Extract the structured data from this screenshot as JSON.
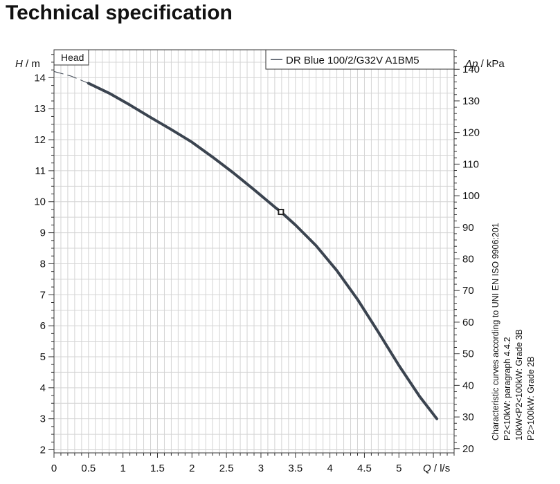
{
  "page": {
    "title": "Technical specification"
  },
  "chart_data": {
    "type": "line",
    "title": "Technical specification",
    "xlabel": {
      "var": "Q",
      "unit": "l/s"
    },
    "ylabel_left": {
      "var": "H",
      "unit": "m"
    },
    "ylabel_right": {
      "var": "Δp",
      "unit": "kPa"
    },
    "xlim": [
      0,
      5.8
    ],
    "ylim": [
      1.9,
      14.9
    ],
    "right_ylim_kPa": [
      18.64,
      146.17
    ],
    "x_ticks": [
      0,
      0.5,
      1,
      1.5,
      2,
      2.5,
      3,
      3.5,
      4,
      4.5,
      5
    ],
    "x_tick_labels": [
      "0",
      "0.5",
      "1",
      "1.5",
      "2",
      "2.5",
      "3",
      "3.5",
      "4",
      "4.5",
      "5"
    ],
    "y_ticks_left": [
      2,
      3,
      4,
      5,
      6,
      7,
      8,
      9,
      10,
      11,
      12,
      13,
      14
    ],
    "y_tick_labels_left": [
      "2",
      "3",
      "4",
      "5",
      "6",
      "7",
      "8",
      "9",
      "10",
      "11",
      "12",
      "13",
      "14"
    ],
    "y_ticks_right": [
      20,
      30,
      40,
      50,
      60,
      70,
      80,
      90,
      100,
      110,
      120,
      130,
      140
    ],
    "y_tick_labels_right": [
      "20",
      "30",
      "40",
      "50",
      "60",
      "70",
      "80",
      "90",
      "100",
      "110",
      "120",
      "130",
      "140"
    ],
    "grid": true,
    "panel_label": "Head",
    "legend": {
      "position": "top-right",
      "entries": [
        "DR Blue 100/2/G32V A1BM5"
      ]
    },
    "series": [
      {
        "name": "DR Blue 100/2/G32V A1BM5",
        "dashed_segment": {
          "x": [
            0,
            0.25,
            0.5
          ],
          "y": [
            14.2,
            14.05,
            13.82
          ]
        },
        "x": [
          0.5,
          0.8,
          1.1,
          1.4,
          1.7,
          2.0,
          2.3,
          2.6,
          2.9,
          3.2,
          3.29,
          3.5,
          3.8,
          4.1,
          4.4,
          4.7,
          5.0,
          5.3,
          5.55
        ],
        "y": [
          13.82,
          13.5,
          13.12,
          12.72,
          12.33,
          11.92,
          11.44,
          10.93,
          10.39,
          9.83,
          9.67,
          9.25,
          8.58,
          7.78,
          6.85,
          5.8,
          4.72,
          3.72,
          3.0
        ]
      }
    ],
    "operating_point": {
      "x": 3.29,
      "y": 9.67
    },
    "annotation": [
      "Characteristic curves according to UNI EN ISO 9906:201",
      "P2<10kW:  paragraph 4.4.2",
      "10kW<P2<100kW: Grade 3B",
      "P2>100kW: Grade 2B"
    ],
    "colors": {
      "curve": "#3b4450",
      "grid": "#d4d4d4",
      "axis": "#333333",
      "marker_fill": "#ffffff"
    }
  }
}
